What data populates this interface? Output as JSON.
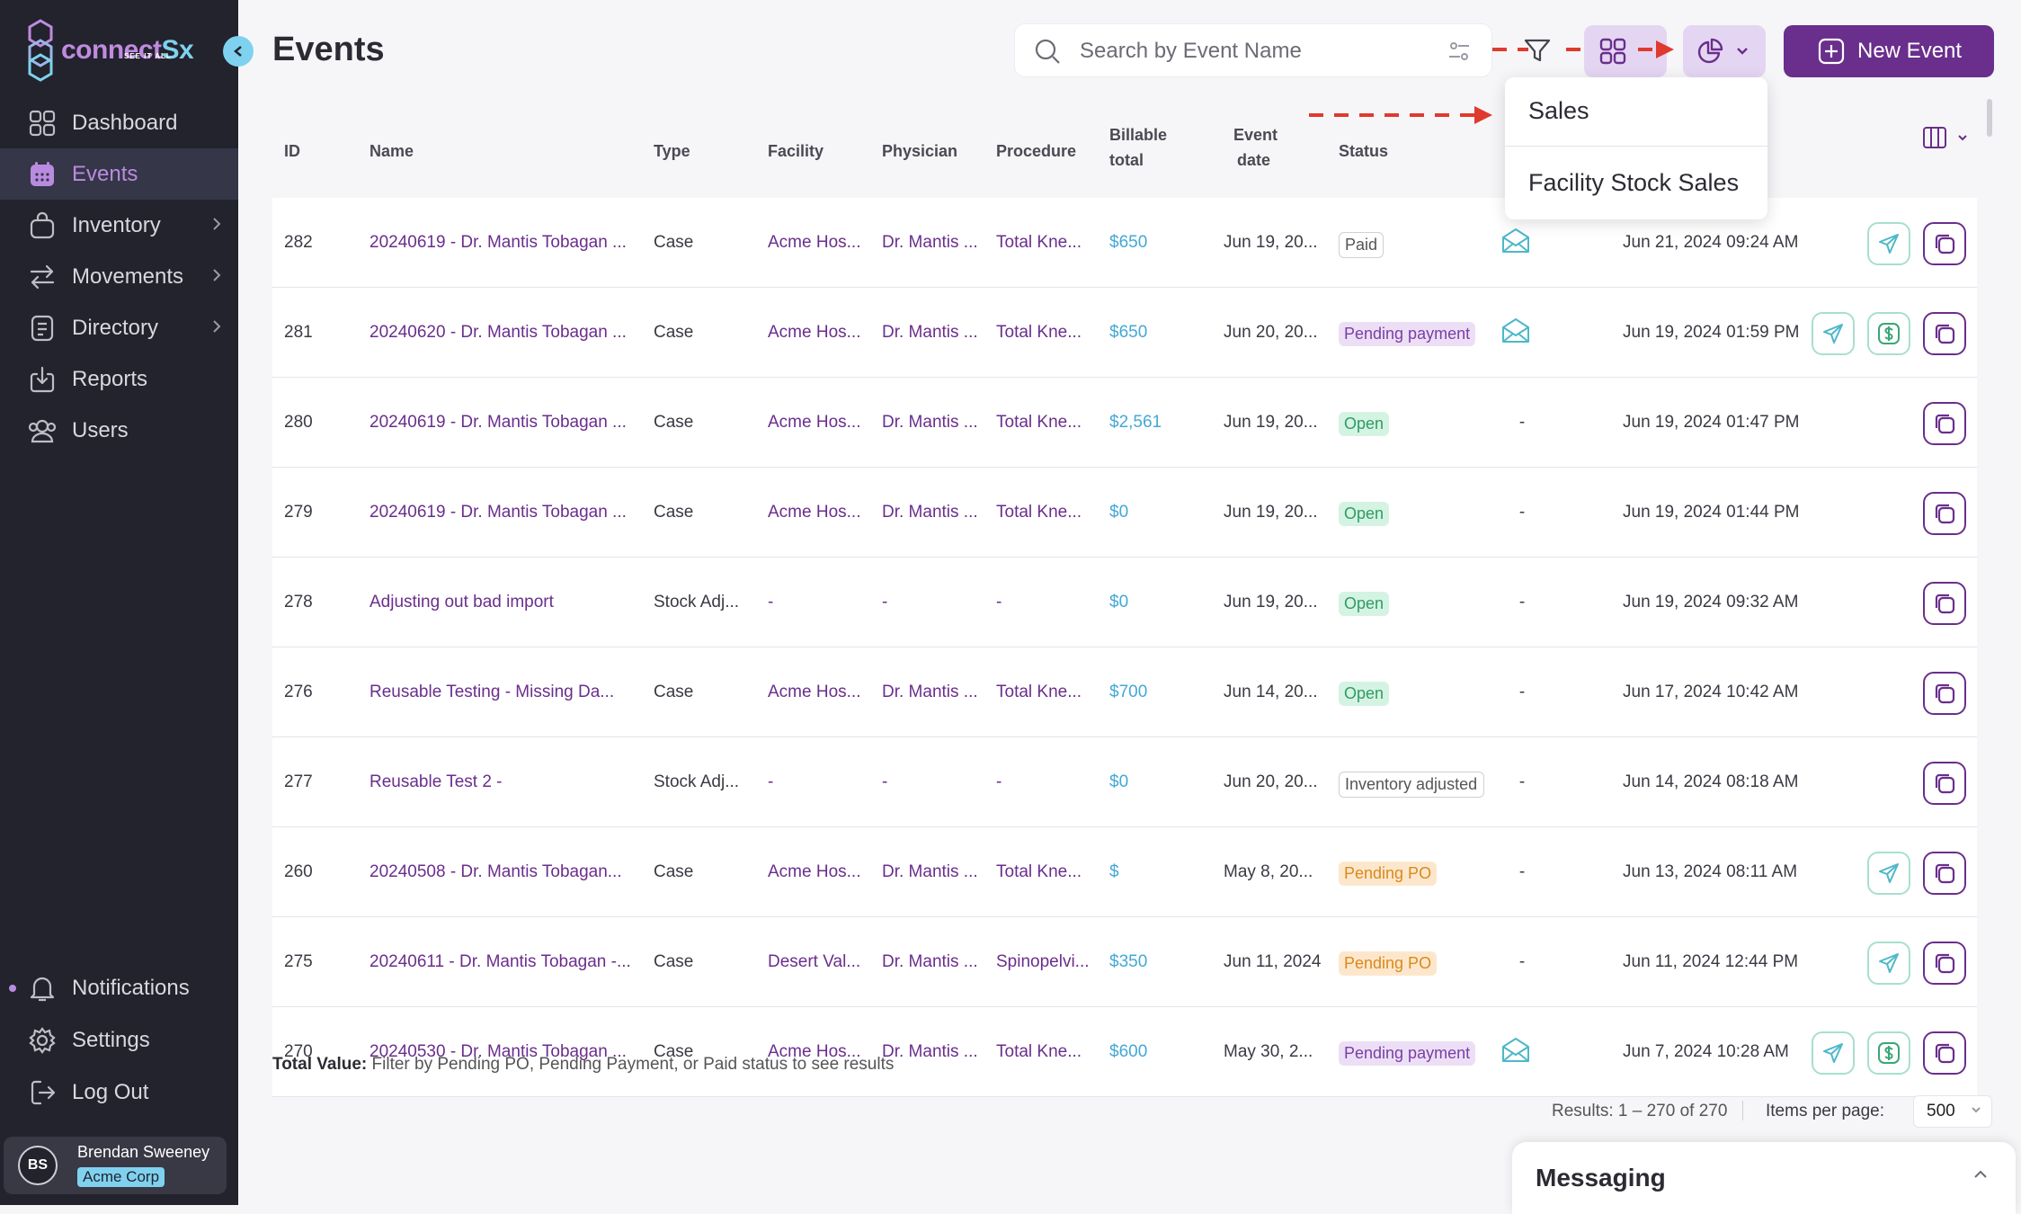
{
  "app": {
    "logo_main": "connect",
    "logo_accent": "Sx",
    "logo_tagline": "SEE IT ALL"
  },
  "sidebar": {
    "items": [
      {
        "label": "Dashboard",
        "icon": "dashboard-icon"
      },
      {
        "label": "Events",
        "icon": "calendar-icon",
        "active": true
      },
      {
        "label": "Inventory",
        "icon": "bag-icon",
        "has_children": true
      },
      {
        "label": "Movements",
        "icon": "arrows-icon",
        "has_children": true
      },
      {
        "label": "Directory",
        "icon": "book-icon",
        "has_children": true
      },
      {
        "label": "Reports",
        "icon": "download-icon"
      },
      {
        "label": "Users",
        "icon": "users-icon"
      }
    ],
    "bottom": [
      {
        "label": "Notifications",
        "icon": "bell-icon"
      },
      {
        "label": "Settings",
        "icon": "gear-icon"
      },
      {
        "label": "Log Out",
        "icon": "logout-icon"
      }
    ],
    "user": {
      "initials": "BS",
      "name": "Brendan Sweeney",
      "org": "Acme Corp"
    }
  },
  "header": {
    "title": "Events",
    "search_placeholder": "Search by Event Name",
    "new_event_label": "New Event"
  },
  "dropdown": {
    "items": [
      "Sales",
      "Facility Stock Sales"
    ]
  },
  "table": {
    "headers": {
      "id": "ID",
      "name": "Name",
      "type": "Type",
      "facility": "Facility",
      "physician": "Physician",
      "procedure": "Procedure",
      "billable_1": "Billable",
      "billable_2": "total",
      "event_date_1": "Event",
      "event_date_2": "date",
      "status": "Status"
    },
    "rows": [
      {
        "id": "282",
        "name": "20240619 - Dr. Mantis Tobagan ...",
        "type": "Case",
        "facility": "Acme Hos...",
        "physician": "Dr. Mantis ...",
        "procedure": "Total Kne...",
        "billable": "$650",
        "date": "Jun 19, 20...",
        "status": "Paid",
        "status_kind": "paid",
        "mail": true,
        "updated": "Jun 21, 2024 09:24 AM",
        "send": true,
        "pay": false
      },
      {
        "id": "281",
        "name": "20240620 - Dr. Mantis Tobagan ...",
        "type": "Case",
        "facility": "Acme Hos...",
        "physician": "Dr. Mantis ...",
        "procedure": "Total Kne...",
        "billable": "$650",
        "date": "Jun 20, 20...",
        "status": "Pending payment",
        "status_kind": "pending",
        "mail": true,
        "updated": "Jun 19, 2024 01:59 PM",
        "send": true,
        "pay": true
      },
      {
        "id": "280",
        "name": "20240619 - Dr. Mantis Tobagan ...",
        "type": "Case",
        "facility": "Acme Hos...",
        "physician": "Dr. Mantis ...",
        "procedure": "Total Kne...",
        "billable": "$2,561",
        "date": "Jun 19, 20...",
        "status": "Open",
        "status_kind": "open",
        "mail": false,
        "updated": "Jun 19, 2024 01:47 PM",
        "send": false,
        "pay": false
      },
      {
        "id": "279",
        "name": "20240619 - Dr. Mantis Tobagan ...",
        "type": "Case",
        "facility": "Acme Hos...",
        "physician": "Dr. Mantis ...",
        "procedure": "Total Kne...",
        "billable": "$0",
        "date": "Jun 19, 20...",
        "status": "Open",
        "status_kind": "open",
        "mail": false,
        "updated": "Jun 19, 2024 01:44 PM",
        "send": false,
        "pay": false
      },
      {
        "id": "278",
        "name": "Adjusting out bad import",
        "type": "Stock Adj...",
        "facility": "-",
        "physician": "-",
        "procedure": "-",
        "billable": "$0",
        "date": "Jun 19, 20...",
        "status": "Open",
        "status_kind": "open",
        "mail": false,
        "updated": "Jun 19, 2024 09:32 AM",
        "send": false,
        "pay": false
      },
      {
        "id": "276",
        "name": "Reusable Testing - Missing Da...",
        "type": "Case",
        "facility": "Acme Hos...",
        "physician": "Dr. Mantis ...",
        "procedure": "Total Kne...",
        "billable": "$700",
        "date": "Jun 14, 20...",
        "status": "Open",
        "status_kind": "open",
        "mail": false,
        "updated": "Jun 17, 2024 10:42 AM",
        "send": false,
        "pay": false
      },
      {
        "id": "277",
        "name": "Reusable Test 2 -",
        "type": "Stock Adj...",
        "facility": "-",
        "physician": "-",
        "procedure": "-",
        "billable": "$0",
        "date": "Jun 20, 20...",
        "status": "Inventory adjusted",
        "status_kind": "adj",
        "mail": false,
        "updated": "Jun 14, 2024 08:18 AM",
        "send": false,
        "pay": false
      },
      {
        "id": "260",
        "name": "20240508 - Dr. Mantis Tobagan...",
        "type": "Case",
        "facility": "Acme Hos...",
        "physician": "Dr. Mantis ...",
        "procedure": "Total Kne...",
        "billable": "$",
        "date": "May 8, 20...",
        "status": "Pending PO",
        "status_kind": "po",
        "mail": false,
        "updated": "Jun 13, 2024 08:11 AM",
        "send": true,
        "pay": false
      },
      {
        "id": "275",
        "name": "20240611 - Dr. Mantis Tobagan -...",
        "type": "Case",
        "facility": "Desert Val...",
        "physician": "Dr. Mantis ...",
        "procedure": "Spinopelvi...",
        "billable": "$350",
        "date": "Jun 11, 2024",
        "status": "Pending PO",
        "status_kind": "po",
        "mail": false,
        "updated": "Jun 11, 2024 12:44 PM",
        "send": true,
        "pay": false
      },
      {
        "id": "270",
        "name": "20240530 - Dr. Mantis Tobagan ...",
        "type": "Case",
        "facility": "Acme Hos...",
        "physician": "Dr. Mantis ...",
        "procedure": "Total Kne...",
        "billable": "$600",
        "date": "May 30, 2...",
        "status": "Pending payment",
        "status_kind": "pending",
        "mail": true,
        "updated": "Jun 7, 2024 10:28 AM",
        "send": true,
        "pay": true
      }
    ],
    "no_mail_placeholder": "-"
  },
  "footer": {
    "total_label": "Total Value:",
    "total_text": "Filter by Pending PO, Pending Payment, or Paid status to see results",
    "results": "Results: 1 – 270 of 270",
    "items_per_page_label": "Items per page:",
    "items_per_page_value": "500"
  },
  "messaging": {
    "title": "Messaging"
  },
  "colors": {
    "sidebar_bg": "#22232c",
    "brand_purple": "#6a2e8c",
    "accent_cyan": "#7fd2ef",
    "annotation_red": "#e03a2f"
  }
}
